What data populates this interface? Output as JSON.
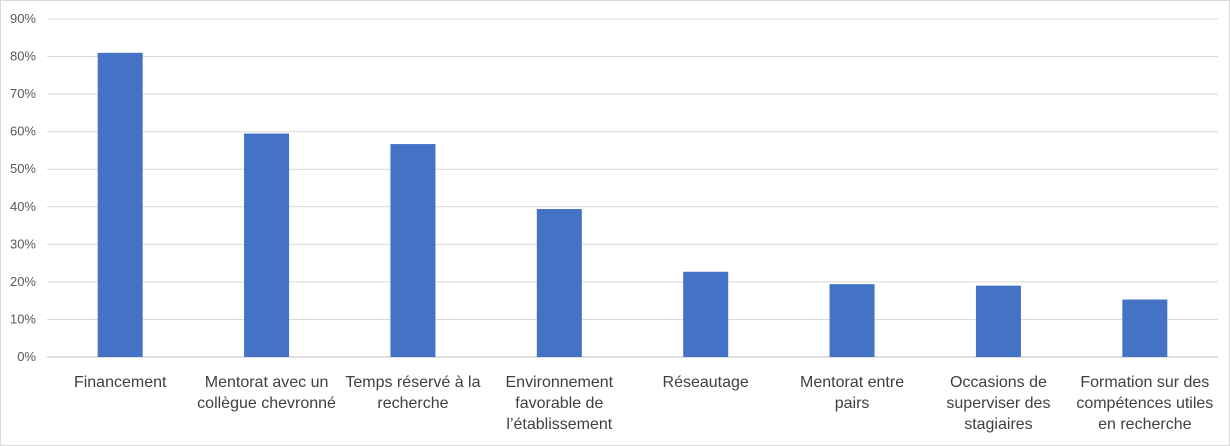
{
  "chart_data": {
    "type": "bar",
    "title": "",
    "xlabel": "",
    "ylabel": "",
    "ylim": [
      0,
      0.9
    ],
    "yticks": [
      "0%",
      "10%",
      "20%",
      "30%",
      "40%",
      "50%",
      "60%",
      "70%",
      "80%",
      "90%"
    ],
    "grid": true,
    "legend": "none",
    "bar_color": "#4472C4",
    "categories": [
      [
        "Financement"
      ],
      [
        "Mentorat avec un",
        "collègue chevronné"
      ],
      [
        "Temps réservé à la",
        "recherche"
      ],
      [
        "Environnement",
        "favorable de",
        "l’établissement"
      ],
      [
        "Réseautage"
      ],
      [
        "Mentorat entre",
        "pairs"
      ],
      [
        "Occasions de",
        "superviser des",
        "stagiaires"
      ],
      [
        "Formation sur des",
        "compétences utiles",
        "en recherche"
      ]
    ],
    "values": [
      0.81,
      0.595,
      0.567,
      0.394,
      0.227,
      0.194,
      0.19,
      0.153
    ]
  }
}
